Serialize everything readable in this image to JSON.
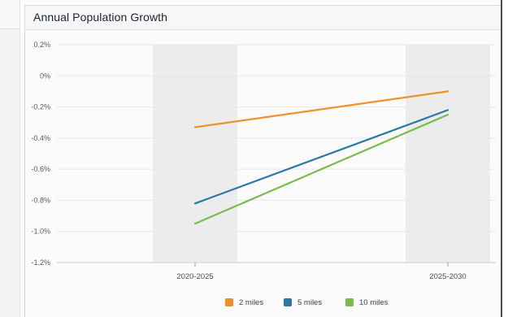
{
  "panel": {
    "title": "Annual Population Growth"
  },
  "chart_data": {
    "type": "line",
    "title": "Annual Population Growth",
    "xlabel": "",
    "ylabel": "",
    "categories": [
      "2020-2025",
      "2025-2030"
    ],
    "ylim": [
      -1.2,
      0.2
    ],
    "yticks": [
      "0.2%",
      "0%",
      "-0.2%",
      "-0.4%",
      "-0.6%",
      "-0.8%",
      "-1.0%",
      "-1.2%"
    ],
    "ytick_values": [
      0.2,
      0,
      -0.2,
      -0.4,
      -0.6,
      -0.8,
      -1.0,
      -1.2
    ],
    "grid": true,
    "legend_position": "bottom-center",
    "series": [
      {
        "name": "2 miles",
        "color": "#f0902a",
        "values": [
          -0.33,
          -0.1
        ]
      },
      {
        "name": "5 miles",
        "color": "#2b78a6",
        "values": [
          -0.82,
          -0.22
        ]
      },
      {
        "name": "10 miles",
        "color": "#79bc4c",
        "values": [
          -0.95,
          -0.25
        ]
      }
    ]
  }
}
